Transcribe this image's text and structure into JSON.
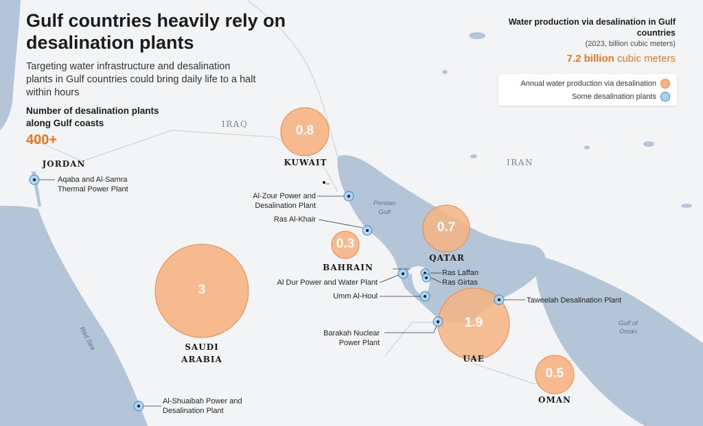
{
  "header": {
    "title": "Gulf countries heavily rely on desalination plants",
    "subtitle": "Targeting water infrastructure and desalination plants in Gulf countries could bring daily life to a halt within hours",
    "stat_label": "Number of desalination plants along Gulf coasts",
    "stat_value": "400+"
  },
  "summary": {
    "title": "Water production via desalination in Gulf countries",
    "units": "(2023, billion cubic meters)",
    "total_value": "7.2 billion",
    "total_unit": "cubic meters"
  },
  "legend": {
    "production": "Annual water production via desalination",
    "plants": "Some desalination plants"
  },
  "colors": {
    "bubble": "#f6b483",
    "bubble_stroke": "#e8874a",
    "plant": "#a9d3f2",
    "plant_stroke": "#3e88c8",
    "sea": "#b3c5d6",
    "land": "#f3f4f5",
    "accent": "#e8761e"
  },
  "countries": {
    "kuwait": "KUWAIT",
    "bahrain": "BAHRAIN",
    "qatar": "QATAR",
    "saudi": "SAUDI ARABIA",
    "uae": "UAE",
    "oman": "OMAN",
    "jordan": "JORDAN",
    "iraq": "IRAQ",
    "iran": "IRAN"
  },
  "waters": {
    "persian_gulf": "Persian Gulf",
    "red_sea": "Red Sea",
    "gulf_of_oman": "Gulf of Oman"
  },
  "production": [
    {
      "country": "Kuwait",
      "label": "0.8",
      "value": 0.8
    },
    {
      "country": "Bahrain",
      "label": "0.3",
      "value": 0.3
    },
    {
      "country": "Qatar",
      "label": "0.7",
      "value": 0.7
    },
    {
      "country": "Saudi Arabia",
      "label": "3",
      "value": 3
    },
    {
      "country": "UAE",
      "label": "1.9",
      "value": 1.9
    },
    {
      "country": "Oman",
      "label": "0.5",
      "value": 0.5
    }
  ],
  "plants": {
    "aqaba": "Aqaba and Al-Samra Thermal Power Plant",
    "alzour": "Al-Zour Power and Desalination Plant",
    "rasalkhair": "Ras Al-Khair",
    "aldur": "Al Dur Power and Water Plant",
    "ummalhoul": "Umm Al-Houl",
    "raslaffan": "Ras Laffan",
    "rasgirtas": "Ras Girtas",
    "taweelah": "Taweelah Desalination Plant",
    "barakah": "Barakah Nuclear Power Plant",
    "shuaibah": "Al-Shuaibah Power and Desalination Plant"
  }
}
